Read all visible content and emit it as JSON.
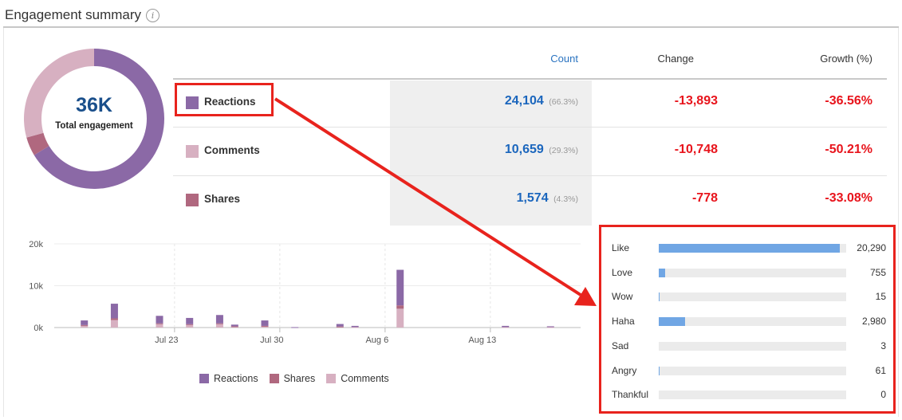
{
  "header": {
    "title": "Engagement summary",
    "info_icon": "info-icon"
  },
  "summary": {
    "total_value": "36K",
    "total_label": "Total engagement"
  },
  "metrics_table": {
    "headers": {
      "count": "Count",
      "change": "Change",
      "growth": "Growth (%)"
    },
    "rows": [
      {
        "label": "Reactions",
        "color": "#8b69a6",
        "count": "24,104",
        "pct": "(66.3%)",
        "change": "-13,893",
        "growth": "-36.56%"
      },
      {
        "label": "Comments",
        "color": "#d7b0c1",
        "count": "10,659",
        "pct": "(29.3%)",
        "change": "-10,748",
        "growth": "-50.21%"
      },
      {
        "label": "Shares",
        "color": "#b0687f",
        "count": "1,574",
        "pct": "(4.3%)",
        "change": "-778",
        "growth": "-33.08%"
      }
    ]
  },
  "reactions_breakdown": [
    {
      "label": "Like",
      "value": 20290,
      "display": "20,290"
    },
    {
      "label": "Love",
      "value": 755,
      "display": "755"
    },
    {
      "label": "Wow",
      "value": 15,
      "display": "15"
    },
    {
      "label": "Haha",
      "value": 2980,
      "display": "2,980"
    },
    {
      "label": "Sad",
      "value": 3,
      "display": "3"
    },
    {
      "label": "Angry",
      "value": 61,
      "display": "61"
    },
    {
      "label": "Thankful",
      "value": 0,
      "display": "0"
    }
  ],
  "colors": {
    "accent_red": "#e8231d",
    "count_blue": "#1b66bd",
    "bar_blue": "#70a6e4"
  },
  "chart_data": [
    {
      "type": "pie",
      "categories": [
        "Reactions",
        "Comments",
        "Shares"
      ],
      "values": [
        24104,
        10659,
        1574
      ],
      "colors": [
        "#8b69a6",
        "#d7b0c1",
        "#b0687f"
      ]
    },
    {
      "type": "bar",
      "stacked": true,
      "x": [
        "Jul 17",
        "Jul 19",
        "Jul 22",
        "Jul 24",
        "Jul 26",
        "Jul 27",
        "Jul 29",
        "Jul 31",
        "Aug 3",
        "Aug 4",
        "Aug 7",
        "Aug 14",
        "Aug 17"
      ],
      "series": [
        {
          "name": "Reactions",
          "color": "#8b69a6",
          "values": [
            1100,
            3500,
            1800,
            1500,
            2000,
            400,
            1300,
            100,
            600,
            300,
            8500,
            300,
            200
          ]
        },
        {
          "name": "Shares",
          "color": "#b0687f",
          "values": [
            100,
            400,
            200,
            200,
            200,
            50,
            100,
            0,
            50,
            0,
            800,
            0,
            0
          ]
        },
        {
          "name": "Comments",
          "color": "#d7b0c1",
          "values": [
            500,
            1800,
            800,
            600,
            800,
            250,
            300,
            0,
            200,
            100,
            4500,
            100,
            100
          ]
        }
      ],
      "xticks": [
        "Jul 23",
        "Jul 30",
        "Aug 6",
        "Aug 13"
      ],
      "yticks": [
        "0k",
        "10k",
        "20k"
      ],
      "ylim": [
        0,
        20000
      ],
      "legend_position": "bottom"
    }
  ]
}
